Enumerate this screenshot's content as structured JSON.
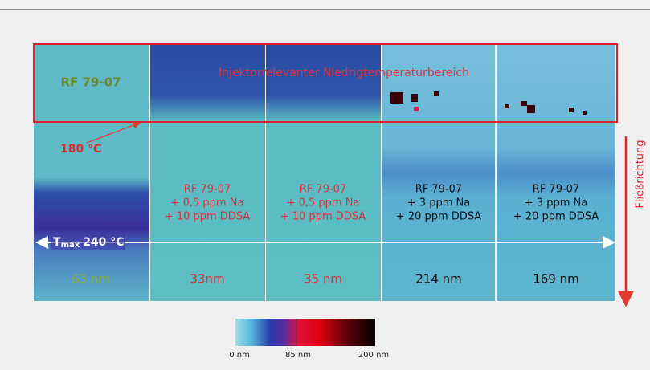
{
  "banner": "Injektorrelevanter Niedrigtemperaturbereich",
  "low_temp": "180 °C",
  "tmax": {
    "symbol": "T",
    "subscript": "max",
    "value": "240 °C"
  },
  "flow_direction": "Fließrichtung",
  "panels": [
    {
      "lines": [
        "RF 79-07"
      ],
      "thickness": "63 nm"
    },
    {
      "lines": [
        "RF 79-07",
        "+ 0,5 ppm Na",
        "+ 10 ppm DDSA"
      ],
      "thickness": "33nm"
    },
    {
      "lines": [
        "RF 79-07",
        "+ 0,5 ppm Na",
        "+ 10 ppm DDSA"
      ],
      "thickness": "35 nm"
    },
    {
      "lines": [
        "RF 79-07",
        "+ 3 ppm Na",
        "+ 20 ppm DDSA"
      ],
      "thickness": "214 nm"
    },
    {
      "lines": [
        "RF 79-07",
        "+ 3 ppm Na",
        "+ 20 ppm DDSA"
      ],
      "thickness": "169 nm"
    }
  ],
  "colorbar": {
    "ticks": [
      "0 nm",
      "85 nm",
      "200 nm"
    ]
  }
}
